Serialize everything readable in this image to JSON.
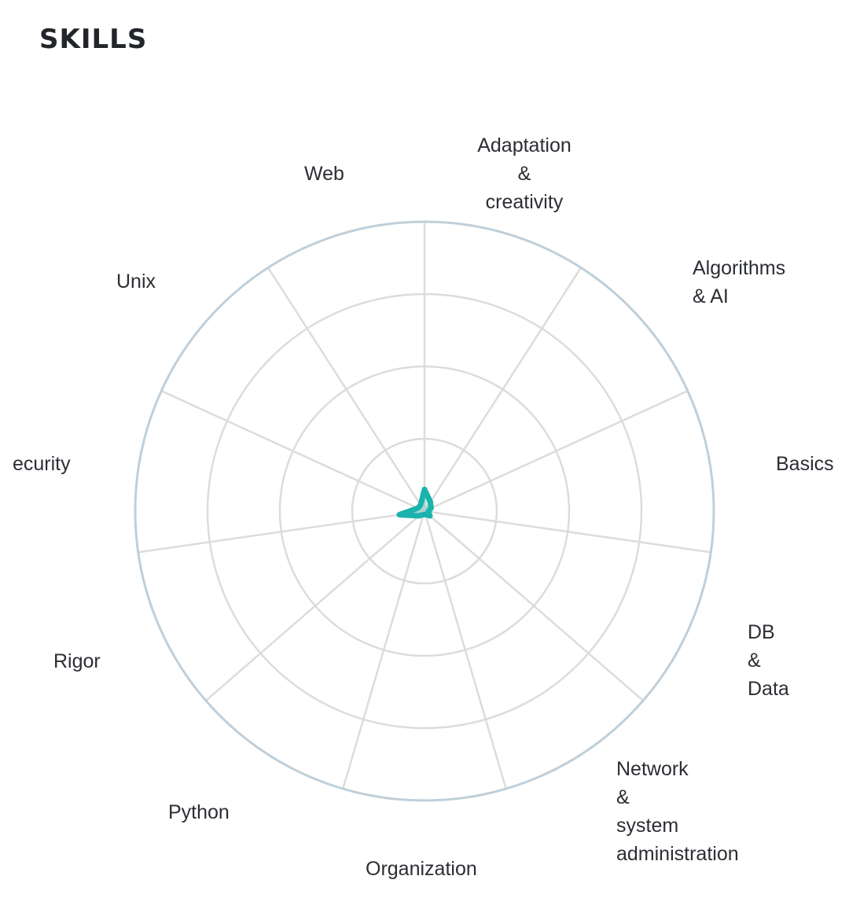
{
  "section": {
    "title": "SKILLS"
  },
  "chart_data": {
    "type": "radar",
    "title": "SKILLS",
    "categories": [
      "Adaptation & creativity",
      "Algorithms & AI",
      "Basics",
      "DB & Data",
      "Network & system administration",
      "Organization",
      "Python",
      "Rigor",
      "Security",
      "Unix",
      "Web"
    ],
    "labels_display": [
      [
        "Adaptation",
        "&",
        "creativity"
      ],
      [
        "Algorithms",
        "& AI"
      ],
      [
        "Basics"
      ],
      [
        "DB",
        "&",
        "Data"
      ],
      [
        "Network",
        "&",
        "system",
        "administration"
      ],
      [
        "Organization"
      ],
      [
        "Python"
      ],
      [
        "Rigor"
      ],
      [
        "ecurity"
      ],
      [
        "Unix"
      ],
      [
        "Web"
      ]
    ],
    "values": [
      0.3,
      0.15,
      0.1,
      0.05,
      0.1,
      0.05,
      0.05,
      0.1,
      0.35,
      0.1,
      0.1
    ],
    "rmax": 4,
    "rings": 4,
    "grid": true,
    "colors": {
      "series": "#1ab3ad",
      "grid": "#dcdcdc",
      "outer_ring": "#bfcfda"
    }
  }
}
